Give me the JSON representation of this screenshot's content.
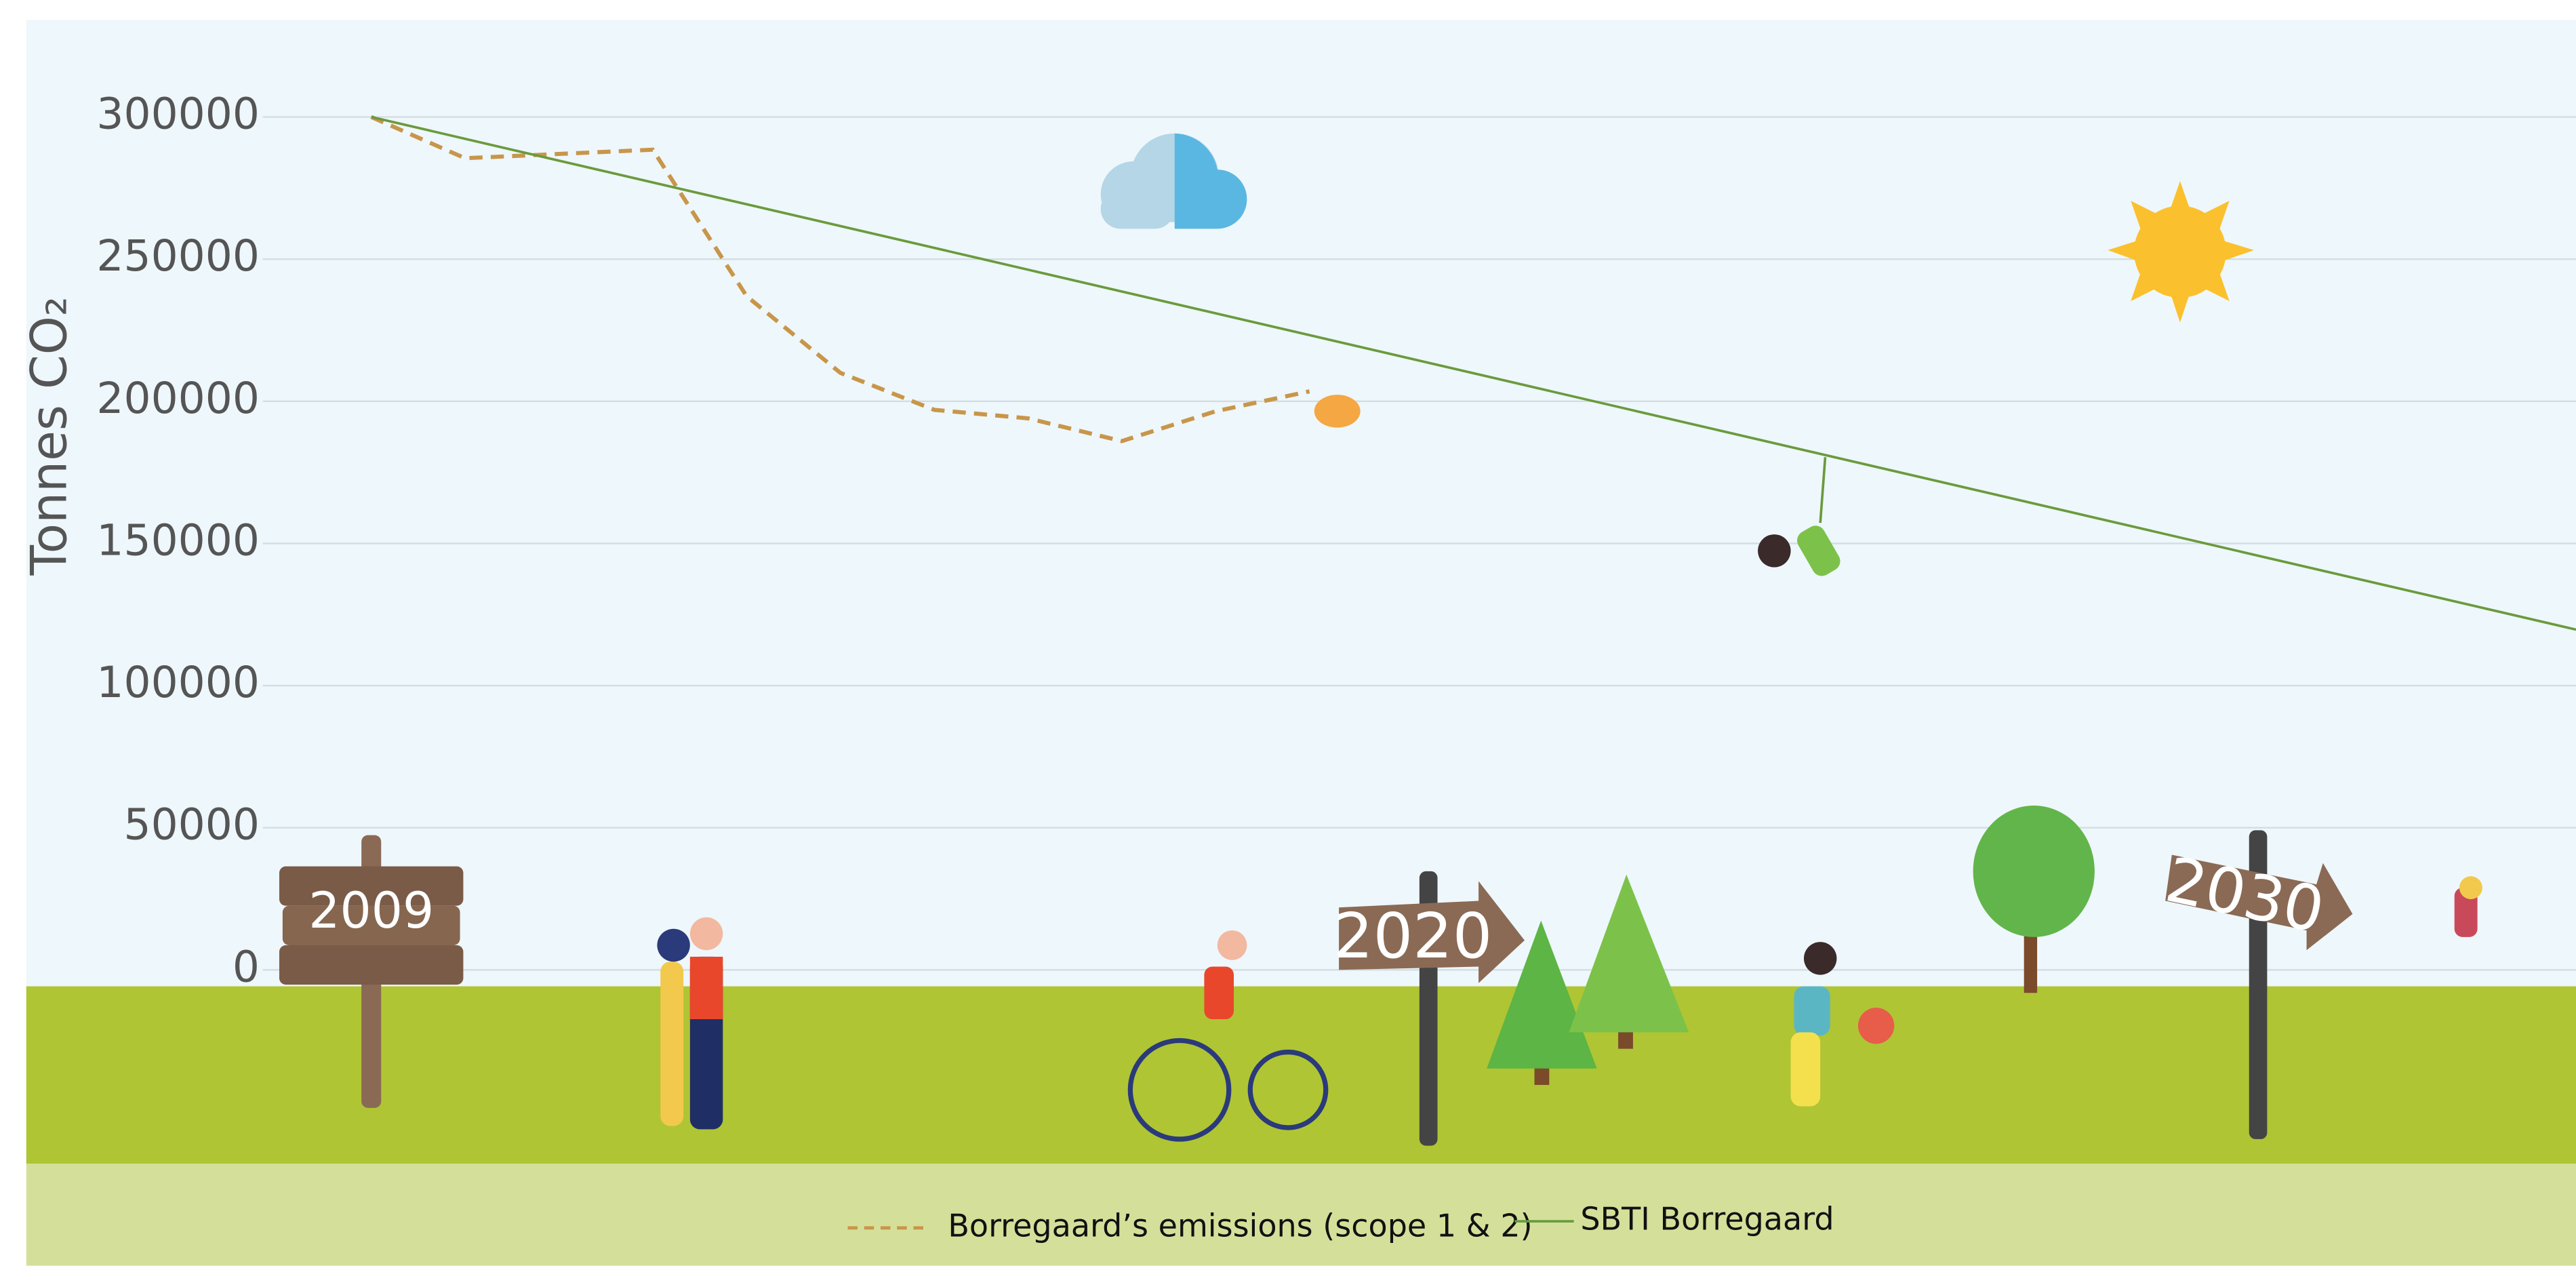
{
  "chart_data": {
    "type": "line",
    "y_label": "Tonnes  CO₂",
    "xlim": [
      2009,
      2032.5
    ],
    "ylim": [
      0,
      300000
    ],
    "yticks": [
      0,
      50000,
      100000,
      150000,
      200000,
      250000,
      300000
    ],
    "grid": true,
    "series": [
      {
        "name": "Borregaard’s emissions (scope 1 & 2)",
        "color": "#c8964a",
        "dashed": true,
        "x": [
          2009,
          2010,
          2011,
          2012,
          2013,
          2014,
          2015,
          2016,
          2017,
          2018,
          2019
        ],
        "values": [
          300000,
          285500,
          287000,
          288500,
          237000,
          210000,
          197000,
          194000,
          186000,
          196500,
          203500
        ]
      },
      {
        "name": "SBTI Borregaard",
        "color": "#6a9a3c",
        "dashed": false,
        "x": [
          2009,
          2032.5
        ],
        "values": [
          300000,
          119700
        ]
      }
    ],
    "annotations": [
      "2009",
      "2020",
      "2030"
    ]
  }
}
